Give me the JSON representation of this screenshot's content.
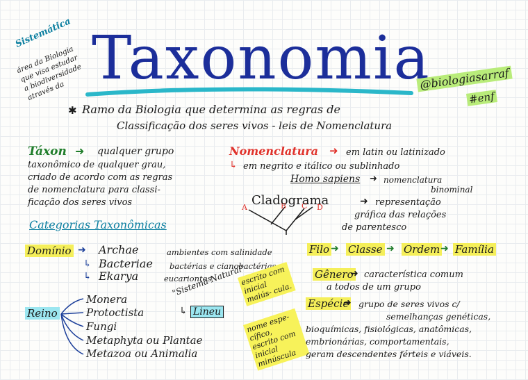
{
  "title": "Taxonomia",
  "handle": "@biologiasarraf",
  "hashtag": "#enf",
  "sistematica": {
    "heading": "Sistemática",
    "lines": [
      "área da Biologia",
      "que visa estudar",
      "a biodiversidade",
      "através da"
    ]
  },
  "definition": {
    "line1": "Ramo da Biologia que determina as regras de",
    "line2": "Classificação dos seres vivos - leis de Nomenclatura"
  },
  "taxon": {
    "term": "Táxon",
    "lines": [
      "qualquer grupo",
      "taxonômico de qualquer grau,",
      "criado de acordo com as regras",
      "de nomenclatura para classi-",
      "ficação dos seres vivos"
    ]
  },
  "nomenclatura": {
    "term": "Nomenclatura",
    "line1": "em latin ou latinizado",
    "line2": "em negrito e itálico ou sublinhado",
    "example": "Homo sapiens",
    "example_note1": "nomenclatura",
    "example_note2": "binominal"
  },
  "cladograma": {
    "term": "Cladograma",
    "desc1": "representação",
    "desc2": "gráfica das relações",
    "desc3": "de parentesco",
    "labels": [
      "A",
      "B",
      "C",
      "D"
    ]
  },
  "categorias_heading": "Categorias Taxonômicas",
  "dominio": {
    "term": "Domínio",
    "items": [
      {
        "name": "Archae",
        "desc": "ambientes com salinidade"
      },
      {
        "name": "Bacteriae",
        "desc": "bactérias e cianobactérias"
      },
      {
        "name": "Ekarya",
        "desc": "eucariontes"
      }
    ]
  },
  "reino": {
    "term": "Reino",
    "items": [
      "Monera",
      "Protoctista",
      "Fungi",
      "Metaphyta ou Plantae",
      "Metazoa ou Animalia"
    ]
  },
  "sistema_natural": {
    "label": "Sistema Natural",
    "linneu": "Lineu"
  },
  "notes": {
    "note1": "escrito com inicial maiús- cula.",
    "note2": "nome espe- cífico, escrito com inicial minúscula"
  },
  "chain": [
    "Filo",
    "Classe",
    "Ordem",
    "Família"
  ],
  "genero": {
    "term": "Gênero",
    "line1": "característica comum",
    "line2": "a todos de um grupo"
  },
  "especie": {
    "term": "Espécie",
    "lines": [
      "grupo de seres vivos c/",
      "semelhanças genéticas,",
      "bioquímicas, fisiológicas, anatômicas,",
      "embrionárias, comportamentais,",
      "geram descendentes férteis e viáveis."
    ]
  }
}
